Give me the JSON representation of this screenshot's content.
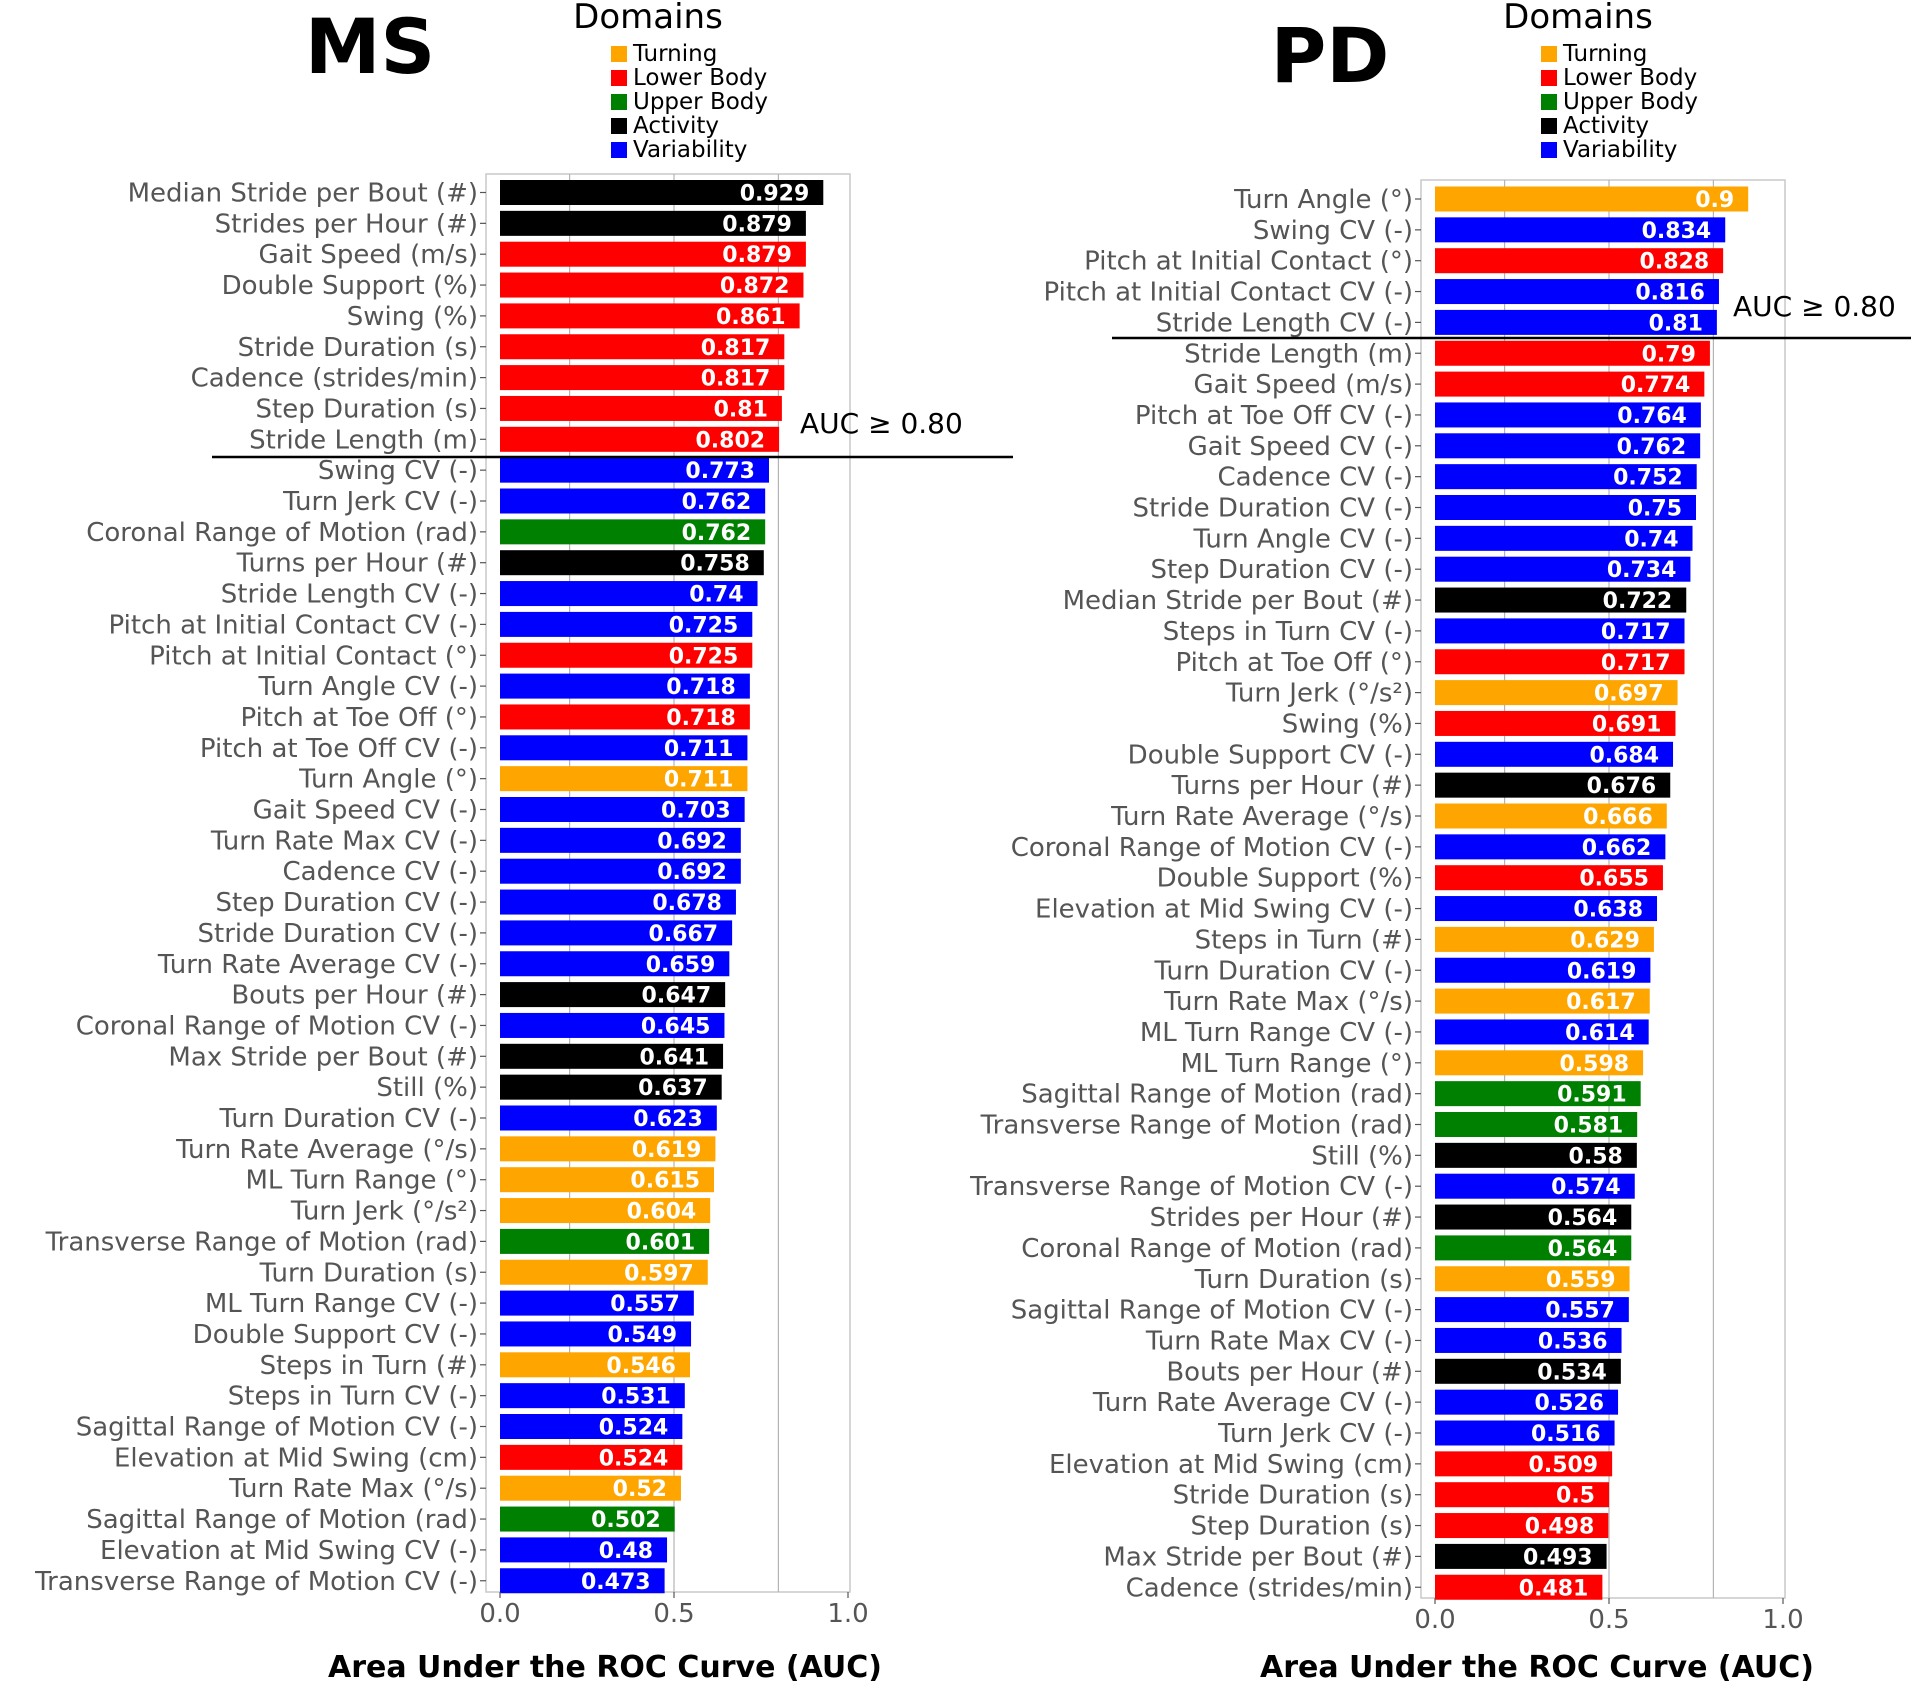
{
  "colors": {
    "Turning": "#ffa500",
    "Lower Body": "#ff0000",
    "Upper Body": "#008000",
    "Activity": "#000000",
    "Variability": "#0000ff"
  },
  "legend": {
    "title": "Domains",
    "items": [
      "Turning",
      "Lower Body",
      "Upper Body",
      "Activity",
      "Variability"
    ]
  },
  "chart_data": [
    {
      "type": "bar",
      "orientation": "horizontal",
      "title": "MS",
      "xlabel": "Area Under the ROC Curve (AUC)",
      "xlim": [
        0,
        1
      ],
      "xticks": [
        "0.0",
        "0.5",
        "1.0"
      ],
      "threshold": {
        "label": "AUC ≥ 0.80",
        "value": 0.8
      },
      "categories": [
        "Median Stride per Bout (#)",
        "Strides per Hour (#)",
        "Gait Speed (m/s)",
        "Double Support (%)",
        "Swing (%)",
        "Stride Duration (s)",
        "Cadence (strides/min)",
        "Step Duration (s)",
        "Stride Length (m)",
        "Swing CV (-)",
        "Turn Jerk CV (-)",
        "Coronal Range of Motion (rad)",
        "Turns per Hour (#)",
        "Stride Length CV (-)",
        "Pitch at Initial Contact CV (-)",
        "Pitch at Initial Contact (°)",
        "Turn Angle CV (-)",
        "Pitch at Toe Off (°)",
        "Pitch at Toe Off CV (-)",
        "Turn Angle (°)",
        "Gait Speed CV (-)",
        "Turn Rate Max CV (-)",
        "Cadence CV (-)",
        "Step Duration CV (-)",
        "Stride Duration CV (-)",
        "Turn Rate Average CV (-)",
        "Bouts per Hour (#)",
        "Coronal Range of Motion CV (-)",
        "Max Stride per Bout (#)",
        "Still (%)",
        "Turn Duration CV (-)",
        "Turn Rate Average (°/s)",
        "ML Turn Range (°)",
        "Turn Jerk (°/s²)",
        "Transverse Range of Motion (rad)",
        "Turn Duration (s)",
        "ML Turn Range CV (-)",
        "Double Support CV (-)",
        "Steps in Turn (#)",
        "Steps in Turn CV (-)",
        "Sagittal Range of Motion CV (-)",
        "Elevation at Mid Swing (cm)",
        "Turn Rate Max (°/s)",
        "Sagittal Range of Motion (rad)",
        "Elevation at Mid Swing CV (-)",
        "Transverse Range of Motion CV (-)"
      ],
      "values": [
        0.929,
        0.879,
        0.879,
        0.872,
        0.861,
        0.817,
        0.817,
        0.81,
        0.802,
        0.773,
        0.762,
        0.762,
        0.758,
        0.74,
        0.725,
        0.725,
        0.718,
        0.718,
        0.711,
        0.711,
        0.703,
        0.692,
        0.692,
        0.678,
        0.667,
        0.659,
        0.647,
        0.645,
        0.641,
        0.637,
        0.623,
        0.619,
        0.615,
        0.604,
        0.601,
        0.597,
        0.557,
        0.549,
        0.546,
        0.531,
        0.524,
        0.524,
        0.52,
        0.502,
        0.48,
        0.473
      ],
      "value_labels": [
        "0.929",
        "0.879",
        "0.879",
        "0.872",
        "0.861",
        "0.817",
        "0.817",
        "0.81",
        "0.802",
        "0.773",
        "0.762",
        "0.762",
        "0.758",
        "0.74",
        "0.725",
        "0.725",
        "0.718",
        "0.718",
        "0.711",
        "0.711",
        "0.703",
        "0.692",
        "0.692",
        "0.678",
        "0.667",
        "0.659",
        "0.647",
        "0.645",
        "0.641",
        "0.637",
        "0.623",
        "0.619",
        "0.615",
        "0.604",
        "0.601",
        "0.597",
        "0.557",
        "0.549",
        "0.546",
        "0.531",
        "0.524",
        "0.524",
        "0.52",
        "0.502",
        "0.48",
        "0.473"
      ],
      "domains": [
        "Activity",
        "Activity",
        "Lower Body",
        "Lower Body",
        "Lower Body",
        "Lower Body",
        "Lower Body",
        "Lower Body",
        "Lower Body",
        "Variability",
        "Variability",
        "Upper Body",
        "Activity",
        "Variability",
        "Variability",
        "Lower Body",
        "Variability",
        "Lower Body",
        "Variability",
        "Turning",
        "Variability",
        "Variability",
        "Variability",
        "Variability",
        "Variability",
        "Variability",
        "Activity",
        "Variability",
        "Activity",
        "Activity",
        "Variability",
        "Turning",
        "Turning",
        "Turning",
        "Upper Body",
        "Turning",
        "Variability",
        "Variability",
        "Turning",
        "Variability",
        "Variability",
        "Lower Body",
        "Turning",
        "Upper Body",
        "Variability",
        "Variability"
      ]
    },
    {
      "type": "bar",
      "orientation": "horizontal",
      "title": "PD",
      "xlabel": "Area Under the ROC Curve (AUC)",
      "xlim": [
        0,
        1
      ],
      "xticks": [
        "0.0",
        "0.5",
        "1.0"
      ],
      "threshold": {
        "label": "AUC ≥ 0.80",
        "value": 0.8
      },
      "categories": [
        "Turn Angle (°)",
        "Swing CV (-)",
        "Pitch at Initial Contact (°)",
        "Pitch at Initial Contact CV (-)",
        "Stride Length CV (-)",
        "Stride Length (m)",
        "Gait Speed (m/s)",
        "Pitch at Toe Off CV (-)",
        "Gait Speed CV (-)",
        "Cadence CV (-)",
        "Stride Duration CV (-)",
        "Turn Angle CV (-)",
        "Step Duration CV (-)",
        "Median Stride per Bout (#)",
        "Steps in Turn CV (-)",
        "Pitch at Toe Off (°)",
        "Turn Jerk (°/s²)",
        "Swing (%)",
        "Double Support CV (-)",
        "Turns per Hour (#)",
        "Turn Rate Average (°/s)",
        "Coronal Range of Motion CV (-)",
        "Double Support (%)",
        "Elevation at Mid Swing CV (-)",
        "Steps in Turn (#)",
        "Turn Duration CV (-)",
        "Turn Rate Max (°/s)",
        "ML Turn Range CV (-)",
        "ML Turn Range (°)",
        "Sagittal Range of Motion (rad)",
        "Transverse Range of Motion (rad)",
        "Still (%)",
        "Transverse Range of Motion CV (-)",
        "Strides per Hour (#)",
        "Coronal Range of Motion (rad)",
        "Turn Duration (s)",
        "Sagittal Range of Motion CV (-)",
        "Turn Rate Max CV (-)",
        "Bouts per Hour (#)",
        "Turn Rate Average CV (-)",
        "Turn Jerk CV (-)",
        "Elevation at Mid Swing (cm)",
        "Stride Duration (s)",
        "Step Duration (s)",
        "Max Stride per Bout (#)",
        "Cadence (strides/min)"
      ],
      "values": [
        0.9,
        0.834,
        0.828,
        0.816,
        0.81,
        0.79,
        0.774,
        0.764,
        0.762,
        0.752,
        0.75,
        0.74,
        0.734,
        0.722,
        0.717,
        0.717,
        0.697,
        0.691,
        0.684,
        0.676,
        0.666,
        0.662,
        0.655,
        0.638,
        0.629,
        0.619,
        0.617,
        0.614,
        0.598,
        0.591,
        0.581,
        0.58,
        0.574,
        0.564,
        0.564,
        0.559,
        0.557,
        0.536,
        0.534,
        0.526,
        0.516,
        0.509,
        0.5,
        0.498,
        0.493,
        0.481
      ],
      "value_labels": [
        "0.9",
        "0.834",
        "0.828",
        "0.816",
        "0.81",
        "0.79",
        "0.774",
        "0.764",
        "0.762",
        "0.752",
        "0.75",
        "0.74",
        "0.734",
        "0.722",
        "0.717",
        "0.717",
        "0.697",
        "0.691",
        "0.684",
        "0.676",
        "0.666",
        "0.662",
        "0.655",
        "0.638",
        "0.629",
        "0.619",
        "0.617",
        "0.614",
        "0.598",
        "0.591",
        "0.581",
        "0.58",
        "0.574",
        "0.564",
        "0.564",
        "0.559",
        "0.557",
        "0.536",
        "0.534",
        "0.526",
        "0.516",
        "0.509",
        "0.5",
        "0.498",
        "0.493",
        "0.481"
      ],
      "domains": [
        "Turning",
        "Variability",
        "Lower Body",
        "Variability",
        "Variability",
        "Lower Body",
        "Lower Body",
        "Variability",
        "Variability",
        "Variability",
        "Variability",
        "Variability",
        "Variability",
        "Activity",
        "Variability",
        "Lower Body",
        "Turning",
        "Lower Body",
        "Variability",
        "Activity",
        "Turning",
        "Variability",
        "Lower Body",
        "Variability",
        "Turning",
        "Variability",
        "Turning",
        "Variability",
        "Turning",
        "Upper Body",
        "Upper Body",
        "Activity",
        "Variability",
        "Activity",
        "Upper Body",
        "Turning",
        "Variability",
        "Variability",
        "Activity",
        "Variability",
        "Variability",
        "Lower Body",
        "Lower Body",
        "Lower Body",
        "Activity",
        "Lower Body"
      ]
    }
  ]
}
